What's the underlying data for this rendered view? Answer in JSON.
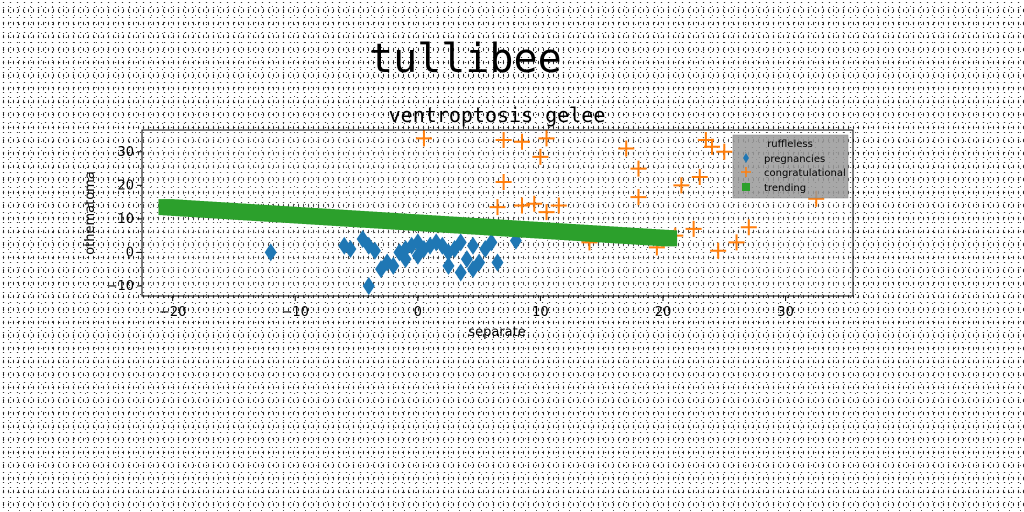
{
  "page": {
    "title": "tullibee"
  },
  "chart_data": {
    "type": "scatter",
    "title": "ventroptosis gelee",
    "xlabel": "separate",
    "ylabel": "othematoma",
    "xlim": [
      -22.5,
      35.5
    ],
    "ylim": [
      -13,
      36.5
    ],
    "xticks": [
      -20,
      -10,
      0,
      10,
      20,
      30
    ],
    "yticks": [
      -10,
      0,
      10,
      20,
      30
    ],
    "xtick_labels": [
      "−20",
      "−10",
      "0",
      "10",
      "20",
      "30"
    ],
    "ytick_labels": [
      "−10",
      "0",
      "10",
      "20",
      "30"
    ],
    "grid": false,
    "legend": {
      "title": "ruffleless",
      "placement": "top-right",
      "entries": [
        "pregnancies",
        "congratulational",
        "trending"
      ]
    },
    "series": [
      {
        "name": "pregnancies",
        "marker": "diamond",
        "color": "#1f77b4",
        "points": [
          [
            -12,
            0
          ],
          [
            -6,
            2
          ],
          [
            -5.5,
            1
          ],
          [
            -4.5,
            4
          ],
          [
            -4,
            2
          ],
          [
            -4,
            -10
          ],
          [
            -3.5,
            0.5
          ],
          [
            -3,
            -5
          ],
          [
            -2.5,
            -3
          ],
          [
            -2,
            -4
          ],
          [
            -1.5,
            0
          ],
          [
            -1,
            1
          ],
          [
            -1,
            -2
          ],
          [
            -0.5,
            2
          ],
          [
            0,
            3
          ],
          [
            0,
            -1
          ],
          [
            0.5,
            1
          ],
          [
            1,
            2
          ],
          [
            1.5,
            3
          ],
          [
            2,
            2
          ],
          [
            2.5,
            0
          ],
          [
            2.5,
            -4
          ],
          [
            3,
            1
          ],
          [
            3.5,
            3
          ],
          [
            3.5,
            -6
          ],
          [
            4,
            -2
          ],
          [
            4.5,
            2
          ],
          [
            4.5,
            -5
          ],
          [
            5,
            -3
          ],
          [
            5.5,
            1
          ],
          [
            6,
            3
          ],
          [
            6.5,
            -3
          ],
          [
            8,
            3.5
          ]
        ]
      },
      {
        "name": "congratulational",
        "marker": "plus",
        "color": "#ff7f0e",
        "points": [
          [
            0.5,
            34
          ],
          [
            6.5,
            13.5
          ],
          [
            7,
            33.5
          ],
          [
            7,
            21
          ],
          [
            8.5,
            14
          ],
          [
            8.5,
            33
          ],
          [
            9.5,
            14.5
          ],
          [
            10,
            28.5
          ],
          [
            10.5,
            34
          ],
          [
            10.5,
            12
          ],
          [
            11.5,
            14
          ],
          [
            17,
            31
          ],
          [
            18,
            25
          ],
          [
            18,
            16.5
          ],
          [
            19.5,
            1.5
          ],
          [
            21,
            5
          ],
          [
            21.5,
            20
          ],
          [
            22.5,
            7
          ],
          [
            23,
            22.5
          ],
          [
            23.5,
            33.5
          ],
          [
            24,
            31.5
          ],
          [
            24.5,
            0.5
          ],
          [
            25,
            30
          ],
          [
            26,
            3
          ],
          [
            27,
            7.5
          ],
          [
            32.5,
            16
          ],
          [
            14,
            3
          ]
        ]
      },
      {
        "name": "trending",
        "marker": "square",
        "color": "#2ca02c",
        "line": {
          "x_start": -20.5,
          "x_end": 20.5,
          "y_start": 13.5,
          "y_end": 4.2
        }
      }
    ]
  }
}
